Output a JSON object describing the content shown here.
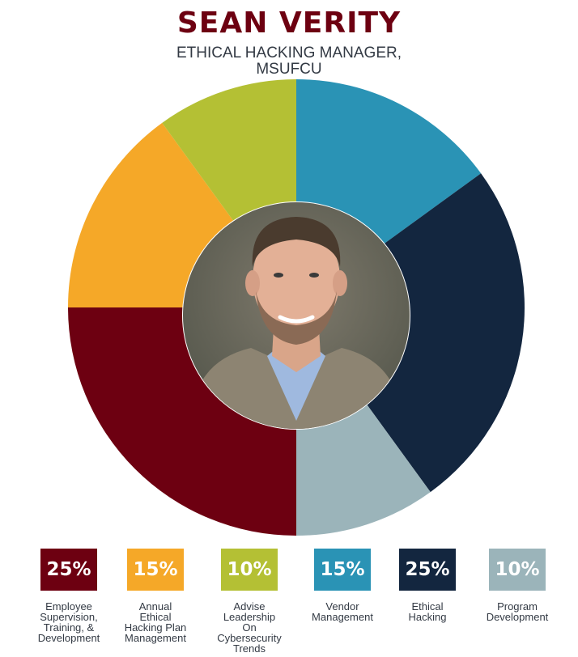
{
  "header": {
    "title": "SEAN VERITY",
    "subtitle_line1": "ETHICAL HACKING MANAGER,",
    "subtitle_line2": "MSUFCU"
  },
  "photo": {
    "icon": "portrait-photo"
  },
  "chart_data": {
    "type": "pie",
    "donut": true,
    "start_at": "top, clockwise",
    "slices": [
      {
        "label": "Vendor Management",
        "value": 15,
        "display": "15%",
        "color": "#2a93b5"
      },
      {
        "label": "Ethical Hacking",
        "value": 25,
        "display": "25%",
        "color": "#13263f"
      },
      {
        "label": "Program Development",
        "value": 10,
        "display": "10%",
        "color": "#9bb4ba"
      },
      {
        "label": "Employee Supervision, Training, & Development",
        "value": 25,
        "display": "25%",
        "color": "#6d0011"
      },
      {
        "label": "Annual Ethical Hacking Plan Management",
        "value": 15,
        "display": "15%",
        "color": "#f5a828"
      },
      {
        "label": "Advise Leadership On Cybersecurity Trends",
        "value": 10,
        "display": "10%",
        "color": "#b4c034"
      }
    ]
  },
  "legend": {
    "items": [
      {
        "pct": "25%",
        "label": "Employee\nSupervision,\nTraining, &\nDevelopment",
        "color": "#6d0011"
      },
      {
        "pct": "15%",
        "label": "Annual\nEthical\nHacking Plan\nManagement",
        "color": "#f5a828"
      },
      {
        "pct": "10%",
        "label": "Advise\nLeadership\nOn\nCybersecurity\nTrends",
        "color": "#b4c034"
      },
      {
        "pct": "15%",
        "label": "Vendor\nManagement",
        "color": "#2a93b5"
      },
      {
        "pct": "25%",
        "label": "Ethical\nHacking",
        "color": "#13263f"
      },
      {
        "pct": "10%",
        "label": "Program\nDevelopment",
        "color": "#9bb4ba"
      }
    ]
  }
}
